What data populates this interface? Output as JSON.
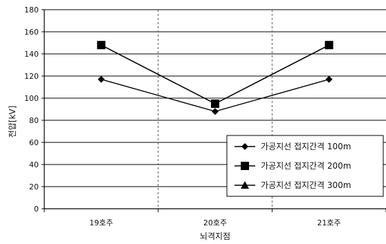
{
  "chart_data": {
    "type": "line",
    "categories": [
      "19호주",
      "20호주",
      "21호주"
    ],
    "ytick_labels": [
      "0",
      "20",
      "40",
      "60",
      "80",
      "100",
      "120",
      "140",
      "160",
      "180"
    ],
    "xlabel": "뇌격지점",
    "ylabel": "전압[kV]",
    "ylim": [
      0,
      180
    ],
    "grid": true,
    "legend_position": "bottom-right",
    "series": [
      {
        "name": "가공지선 접지간격 100m",
        "marker": "diamond",
        "values": [
          117,
          88,
          117
        ]
      },
      {
        "name": "가공지선 접지간격 200m",
        "marker": "square",
        "values": [
          148,
          95,
          148
        ]
      },
      {
        "name": "가공지선 접지간격 300m",
        "marker": "triangle",
        "values": [
          148,
          95,
          148
        ]
      }
    ],
    "colors": {
      "line": "#000000",
      "grid": "#000000",
      "background": "#ffffff"
    }
  }
}
